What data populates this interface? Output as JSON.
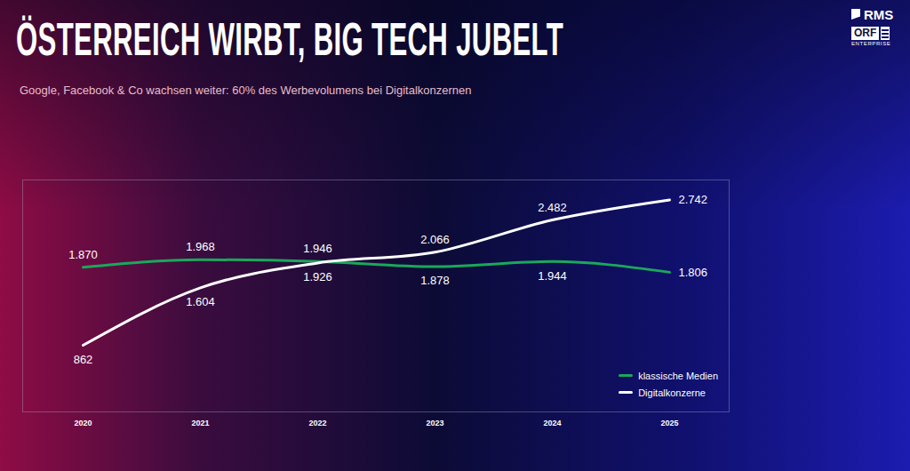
{
  "chart_data": {
    "type": "line",
    "title": "ÖSTERREICH WIRBT, BIG TECH JUBELT",
    "subtitle": "Google, Facebook & Co wachsen weiter: 60% des Werbevolumens bei Digitalkonzernen",
    "annotations": [
      "RMS",
      "ORF",
      "ENTERPRISE"
    ],
    "categories": [
      "2020",
      "2021",
      "2022",
      "2023",
      "2024",
      "2025"
    ],
    "series": [
      {
        "name": "klassische Medien",
        "color": "#1aa85a",
        "values": [
          1870,
          1968,
          1946,
          1878,
          1944,
          1806
        ],
        "value_labels": [
          "1.870",
          "1.968",
          "1.946",
          "1.878",
          "1.944",
          "1.806"
        ]
      },
      {
        "name": "Digitalkonzerne",
        "color": "#ffffff",
        "values": [
          862,
          1604,
          1926,
          2066,
          2482,
          2742
        ],
        "value_labels": [
          "862",
          "1.604",
          "1.926",
          "2.066",
          "2.482",
          "2.742"
        ]
      }
    ],
    "ylim": [
      0,
      3000
    ],
    "yticks": [],
    "tick_labels": "x",
    "data_labels": true,
    "legend": "lower right",
    "grid": false
  }
}
